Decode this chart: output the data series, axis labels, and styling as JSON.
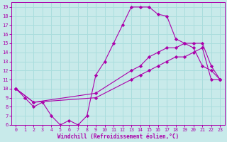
{
  "xlabel": "Windchill (Refroidissement éolien,°C)",
  "xlim": [
    -0.5,
    23.5
  ],
  "ylim": [
    6,
    19.5
  ],
  "xticks": [
    0,
    1,
    2,
    3,
    4,
    5,
    6,
    7,
    8,
    9,
    10,
    11,
    12,
    13,
    14,
    15,
    16,
    17,
    18,
    19,
    20,
    21,
    22,
    23
  ],
  "yticks": [
    6,
    7,
    8,
    9,
    10,
    11,
    12,
    13,
    14,
    15,
    16,
    17,
    18,
    19
  ],
  "line_color": "#aa00aa",
  "bg_color": "#c8eaea",
  "grid_color": "#aadddd",
  "line1_x": [
    0,
    1,
    2,
    3,
    4,
    5,
    6,
    7,
    8,
    9,
    10,
    11,
    12,
    13,
    14,
    15,
    16,
    17,
    18,
    19,
    20,
    21,
    22,
    23
  ],
  "line1_y": [
    10,
    9,
    8,
    8.5,
    7,
    6,
    6.5,
    6,
    7,
    11.5,
    13,
    15,
    17,
    19,
    19,
    19,
    18.2,
    18,
    15.5,
    15,
    14.5,
    12.5,
    12,
    11
  ],
  "line2_x": [
    0,
    2,
    9,
    13,
    14,
    15,
    16,
    17,
    18,
    19,
    20,
    21,
    22,
    23
  ],
  "line2_y": [
    10,
    8.5,
    9,
    11,
    11.5,
    12,
    12.5,
    13,
    13.5,
    13.5,
    14,
    14.5,
    11,
    11
  ],
  "line3_x": [
    0,
    2,
    9,
    13,
    14,
    15,
    16,
    17,
    18,
    19,
    20,
    21,
    22,
    23
  ],
  "line3_y": [
    10,
    8.5,
    9.5,
    12,
    12.5,
    13.5,
    14,
    14.5,
    14.5,
    15,
    15,
    15,
    12.5,
    11
  ]
}
